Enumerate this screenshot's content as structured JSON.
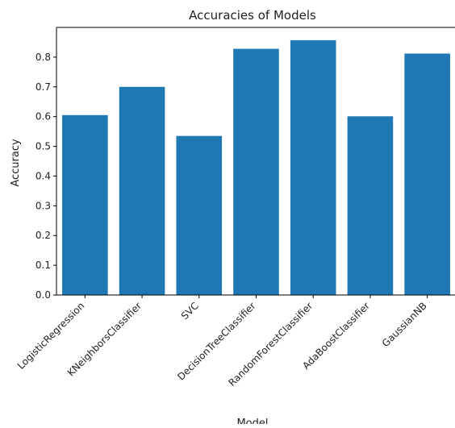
{
  "chart_data": {
    "type": "bar",
    "title": "Accuracies of Models",
    "xlabel": "Model",
    "ylabel": "Accuracy",
    "categories": [
      "LogisticRegression",
      "KNeighborsClassifier",
      "SVC",
      "DecisionTreeClassifier",
      "RandomForestClassifier",
      "AdaBoostClassifier",
      "GaussianNB"
    ],
    "values": [
      0.605,
      0.7,
      0.535,
      0.828,
      0.857,
      0.601,
      0.812
    ],
    "ylim": [
      0,
      0.9
    ],
    "yticks": [
      "0.0",
      "0.1",
      "0.2",
      "0.3",
      "0.4",
      "0.5",
      "0.6",
      "0.7",
      "0.8"
    ],
    "bar_color": "#1f77b4",
    "grid": false
  }
}
